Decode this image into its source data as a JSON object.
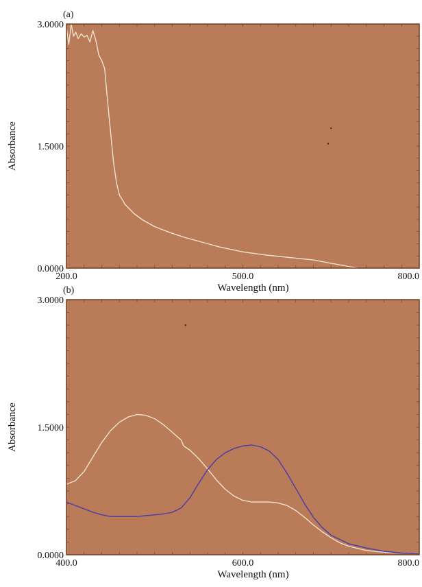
{
  "chart_data": [
    {
      "type": "line",
      "panel_label": "(a)",
      "xlabel": "Wavelength (nm)",
      "ylabel": "Absorbance",
      "xlim": [
        200,
        800
      ],
      "ylim": [
        0,
        3
      ],
      "xticks": [
        "200.0",
        "500.0",
        "800.0"
      ],
      "yticks": [
        "0.0000",
        "1.5000",
        "3.0000"
      ],
      "background": "#b97b58",
      "series": [
        {
          "color": "#f2e3cf",
          "points": [
            [
              200,
              2.95
            ],
            [
              204,
              2.75
            ],
            [
              208,
              3.0
            ],
            [
              212,
              2.85
            ],
            [
              216,
              2.9
            ],
            [
              220,
              2.82
            ],
            [
              225,
              2.88
            ],
            [
              230,
              2.84
            ],
            [
              235,
              2.86
            ],
            [
              240,
              2.78
            ],
            [
              245,
              2.92
            ],
            [
              250,
              2.8
            ],
            [
              255,
              2.62
            ],
            [
              260,
              2.55
            ],
            [
              265,
              2.45
            ],
            [
              268,
              2.2
            ],
            [
              272,
              1.9
            ],
            [
              276,
              1.6
            ],
            [
              280,
              1.3
            ],
            [
              285,
              1.05
            ],
            [
              290,
              0.9
            ],
            [
              300,
              0.78
            ],
            [
              315,
              0.67
            ],
            [
              330,
              0.59
            ],
            [
              350,
              0.51
            ],
            [
              375,
              0.44
            ],
            [
              400,
              0.38
            ],
            [
              430,
              0.32
            ],
            [
              460,
              0.26
            ],
            [
              500,
              0.2
            ],
            [
              540,
              0.16
            ],
            [
              580,
              0.13
            ],
            [
              620,
              0.1
            ],
            [
              650,
              0.06
            ],
            [
              680,
              0.02
            ],
            [
              695,
              0.0
            ]
          ]
        }
      ],
      "specks": [
        [
          650,
          1.72
        ],
        [
          645,
          1.53
        ]
      ]
    },
    {
      "type": "line",
      "panel_label": "(b)",
      "xlabel": "Wavelength (nm)",
      "ylabel": "Absorbance",
      "xlim": [
        400,
        800
      ],
      "ylim": [
        0,
        3
      ],
      "xticks": [
        "400.0",
        "600.0",
        "800.0"
      ],
      "yticks": [
        "0.0000",
        "1.5000",
        "3.0000"
      ],
      "background": "#b97b58",
      "series": [
        {
          "color": "#f2e3cf",
          "points": [
            [
              400,
              0.83
            ],
            [
              410,
              0.87
            ],
            [
              420,
              0.98
            ],
            [
              430,
              1.15
            ],
            [
              440,
              1.32
            ],
            [
              450,
              1.46
            ],
            [
              460,
              1.56
            ],
            [
              470,
              1.62
            ],
            [
              480,
              1.65
            ],
            [
              490,
              1.64
            ],
            [
              500,
              1.6
            ],
            [
              510,
              1.53
            ],
            [
              520,
              1.44
            ],
            [
              530,
              1.35
            ],
            [
              533,
              1.28
            ],
            [
              540,
              1.23
            ],
            [
              550,
              1.13
            ],
            [
              560,
              1.01
            ],
            [
              570,
              0.88
            ],
            [
              580,
              0.77
            ],
            [
              590,
              0.69
            ],
            [
              600,
              0.64
            ],
            [
              610,
              0.62
            ],
            [
              620,
              0.62
            ],
            [
              630,
              0.62
            ],
            [
              640,
              0.61
            ],
            [
              650,
              0.58
            ],
            [
              660,
              0.52
            ],
            [
              670,
              0.44
            ],
            [
              680,
              0.35
            ],
            [
              690,
              0.27
            ],
            [
              700,
              0.2
            ],
            [
              710,
              0.14
            ],
            [
              720,
              0.1
            ],
            [
              740,
              0.05
            ],
            [
              760,
              0.03
            ],
            [
              780,
              0.02
            ],
            [
              800,
              0.01
            ]
          ]
        },
        {
          "color": "#4a3aa8",
          "points": [
            [
              400,
              0.62
            ],
            [
              410,
              0.58
            ],
            [
              420,
              0.54
            ],
            [
              430,
              0.5
            ],
            [
              440,
              0.47
            ],
            [
              450,
              0.45
            ],
            [
              460,
              0.45
            ],
            [
              470,
              0.45
            ],
            [
              480,
              0.45
            ],
            [
              490,
              0.46
            ],
            [
              500,
              0.47
            ],
            [
              510,
              0.48
            ],
            [
              520,
              0.5
            ],
            [
              530,
              0.55
            ],
            [
              540,
              0.67
            ],
            [
              550,
              0.84
            ],
            [
              560,
              1.0
            ],
            [
              570,
              1.12
            ],
            [
              580,
              1.2
            ],
            [
              590,
              1.25
            ],
            [
              600,
              1.28
            ],
            [
              610,
              1.29
            ],
            [
              620,
              1.27
            ],
            [
              630,
              1.22
            ],
            [
              640,
              1.12
            ],
            [
              650,
              0.96
            ],
            [
              660,
              0.78
            ],
            [
              670,
              0.6
            ],
            [
              680,
              0.44
            ],
            [
              690,
              0.32
            ],
            [
              700,
              0.23
            ],
            [
              720,
              0.13
            ],
            [
              740,
              0.08
            ],
            [
              760,
              0.04
            ],
            [
              780,
              0.02
            ],
            [
              800,
              0.01
            ]
          ]
        }
      ],
      "specks": [
        [
          535,
          2.7
        ]
      ]
    }
  ]
}
